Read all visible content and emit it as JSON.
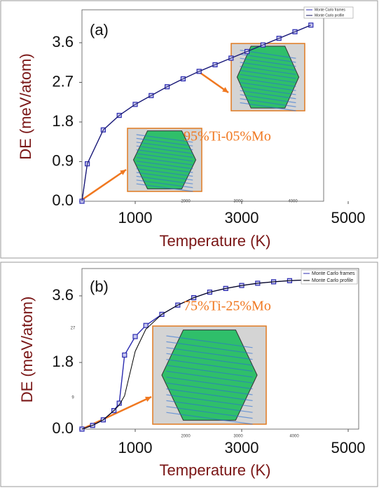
{
  "chart_data": [
    {
      "type": "line",
      "panel_label": "(a)",
      "x_label": "Temperature (K)",
      "y_label": "DE (meV/atom)",
      "annotation": "95%Ti-05%Mo",
      "inset_labels": [
        "2000",
        "3000",
        "4000"
      ],
      "x": [
        0,
        100,
        400,
        700,
        1000,
        1300,
        1600,
        1900,
        2200,
        2500,
        2800,
        3100,
        3400,
        3700,
        4000,
        4300
      ],
      "series": [
        {
          "name": "Monte Carlo frames",
          "color": "#2b2bb0",
          "values": [
            0,
            0.85,
            1.62,
            1.95,
            2.2,
            2.4,
            2.6,
            2.78,
            2.95,
            3.1,
            3.25,
            3.4,
            3.55,
            3.7,
            3.85,
            4.0
          ]
        },
        {
          "name": "Monte Carlo profile",
          "color": "#1a1a66",
          "values": [
            0,
            0.85,
            1.62,
            1.95,
            2.2,
            2.4,
            2.6,
            2.78,
            2.95,
            3.1,
            3.25,
            3.4,
            3.55,
            3.7,
            3.85,
            4.0
          ]
        }
      ],
      "xlim": [
        0,
        5000
      ],
      "xticks": [
        1000,
        3000,
        5000
      ],
      "ylim": [
        0,
        4.3
      ],
      "yticks": [
        {
          "value": 0,
          "label": "0.0"
        },
        0.9,
        1.8,
        2.7,
        3.6
      ]
    },
    {
      "type": "line",
      "panel_label": "(b)",
      "x_label": "Temperature (K)",
      "y_label": "DE (meV/atom)",
      "annotation": "75%Ti-25%Mo",
      "inset_labels": [
        "27",
        "9",
        "2000",
        "3000",
        "4000"
      ],
      "x": [
        0,
        200,
        400,
        600,
        700,
        800,
        1000,
        1200,
        1500,
        1800,
        2100,
        2400,
        2700,
        3000,
        3300,
        3600,
        3900,
        4200,
        4500,
        4800,
        5000
      ],
      "series": [
        {
          "name": "Monte Carlo frames",
          "color": "#2b2bb0",
          "values": [
            0,
            0.1,
            0.25,
            0.5,
            0.7,
            2.0,
            2.5,
            2.8,
            3.1,
            3.35,
            3.55,
            3.7,
            3.8,
            3.88,
            3.94,
            3.98,
            4.01,
            4.03,
            4.05,
            4.06,
            4.07
          ]
        },
        {
          "name": "Monte Carlo profile",
          "color": "#000000",
          "values": [
            0,
            0.1,
            0.25,
            0.5,
            0.65,
            0.9,
            2.1,
            2.7,
            3.1,
            3.35,
            3.55,
            3.7,
            3.8,
            3.88,
            3.94,
            3.98,
            4.01,
            4.03,
            4.05,
            4.06,
            4.07
          ]
        }
      ],
      "xlim": [
        0,
        5000
      ],
      "xticks": [
        1000,
        3000,
        5000
      ],
      "ylim": [
        0,
        4.3
      ],
      "yticks": [
        {
          "value": 0,
          "label": "0.0"
        },
        1.8,
        3.6
      ]
    }
  ]
}
